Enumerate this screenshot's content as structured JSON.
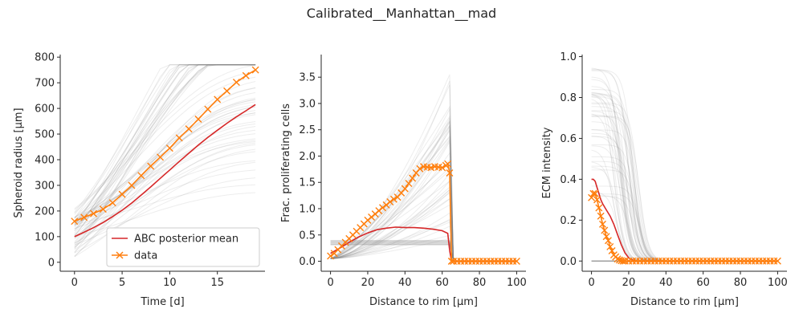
{
  "figure": {
    "suptitle": "Calibrated__Manhattan__mad"
  },
  "colors": {
    "posterior_mean": "#d62728",
    "data": "#ff7f0e",
    "samples": "#7f7f7f",
    "axis": "#262626"
  },
  "chart_data": [
    {
      "type": "line",
      "xlabel": "Time [d]",
      "ylabel": "Spheroid radius [μm]",
      "xlim": [
        -1.5,
        20
      ],
      "ylim": [
        -35,
        810
      ],
      "xticks": [
        0,
        5,
        10,
        15
      ],
      "yticks": [
        0,
        100,
        200,
        300,
        400,
        500,
        600,
        700,
        800
      ],
      "legend": {
        "location": "lower-right",
        "entries": [
          "ABC posterior mean",
          "data"
        ]
      },
      "series": [
        {
          "name": "ABC posterior mean",
          "x": [
            0,
            1,
            2,
            3,
            4,
            5,
            6,
            7,
            8,
            9,
            10,
            11,
            12,
            13,
            14,
            15,
            16,
            17,
            18,
            19
          ],
          "values": [
            100,
            117,
            135,
            155,
            178,
            203,
            231,
            262,
            294,
            327,
            360,
            393,
            425,
            457,
            487,
            515,
            542,
            567,
            591,
            615
          ]
        },
        {
          "name": "data",
          "marker": "x",
          "x": [
            0,
            1,
            2,
            3,
            4,
            5,
            6,
            7,
            8,
            9,
            10,
            11,
            12,
            13,
            14,
            15,
            16,
            17,
            18,
            19
          ],
          "values": [
            160,
            175,
            190,
            207,
            232,
            265,
            300,
            338,
            375,
            410,
            445,
            485,
            520,
            558,
            597,
            635,
            668,
            702,
            728,
            750
          ]
        }
      ],
      "sample_band": {
        "lower": [
          20,
          25,
          30,
          35,
          40,
          50,
          60,
          70,
          80,
          90,
          100,
          110,
          120,
          130,
          140,
          150,
          160,
          170,
          180,
          190
        ],
        "upper": [
          210,
          270,
          330,
          400,
          470,
          540,
          610,
          680,
          745,
          770,
          770,
          770,
          770,
          770,
          770,
          770,
          770,
          770,
          770,
          770
        ],
        "plateau": 770
      }
    },
    {
      "type": "line",
      "xlabel": "Distance to rim [μm]",
      "ylabel": "Frac. proliferating cells",
      "xlim": [
        -5,
        105
      ],
      "ylim": [
        -0.19,
        3.93
      ],
      "xticks": [
        0,
        20,
        40,
        60,
        80,
        100
      ],
      "yticks": [
        0.0,
        0.5,
        1.0,
        1.5,
        2.0,
        2.5,
        3.0,
        3.5
      ],
      "series": [
        {
          "name": "ABC posterior mean",
          "x": [
            0,
            5,
            10,
            15,
            20,
            25,
            30,
            35,
            40,
            45,
            50,
            55,
            60,
            63,
            64,
            65,
            70,
            80,
            90,
            100
          ],
          "values": [
            0.15,
            0.25,
            0.36,
            0.46,
            0.54,
            0.6,
            0.63,
            0.65,
            0.64,
            0.64,
            0.63,
            0.61,
            0.58,
            0.53,
            0.2,
            0.0,
            0.0,
            0.0,
            0.0,
            0.0
          ]
        },
        {
          "name": "data",
          "marker": "x",
          "x": [
            0,
            2,
            4,
            6,
            8,
            10,
            12,
            14,
            16,
            18,
            20,
            22,
            24,
            26,
            28,
            30,
            32,
            34,
            36,
            38,
            40,
            42,
            44,
            46,
            48,
            50,
            52,
            54,
            56,
            58,
            60,
            62,
            63,
            64,
            65,
            66,
            68,
            70,
            72,
            74,
            76,
            78,
            80,
            82,
            84,
            86,
            88,
            90,
            92,
            94,
            96,
            98,
            100
          ],
          "values": [
            0.1,
            0.15,
            0.22,
            0.29,
            0.36,
            0.43,
            0.5,
            0.57,
            0.64,
            0.71,
            0.78,
            0.84,
            0.9,
            0.96,
            1.02,
            1.07,
            1.13,
            1.18,
            1.22,
            1.3,
            1.38,
            1.48,
            1.58,
            1.68,
            1.76,
            1.8,
            1.79,
            1.78,
            1.8,
            1.79,
            1.78,
            1.82,
            1.85,
            1.68,
            0.0,
            0.0,
            0.0,
            0.0,
            0.0,
            0.0,
            0.0,
            0.0,
            0.0,
            0.0,
            0.0,
            0.0,
            0.0,
            0.0,
            0.0,
            0.0,
            0.0,
            0.0,
            0.0
          ]
        }
      ],
      "sample_band": {
        "cutoff": 64,
        "flat_level": 0.35,
        "upper_peak": 3.7
      }
    },
    {
      "type": "line",
      "xlabel": "Distance to rim [μm]",
      "ylabel": "ECM intensity",
      "xlim": [
        -5,
        105
      ],
      "ylim": [
        -0.05,
        1.01
      ],
      "xticks": [
        0,
        20,
        40,
        60,
        80,
        100
      ],
      "yticks": [
        0.0,
        0.2,
        0.4,
        0.6,
        0.8,
        1.0
      ],
      "series": [
        {
          "name": "ABC posterior mean",
          "x": [
            0,
            1,
            2,
            3,
            4,
            5,
            6,
            8,
            10,
            12,
            14,
            16,
            18,
            20,
            22,
            25,
            30,
            40,
            60,
            80,
            100
          ],
          "values": [
            0.4,
            0.4,
            0.39,
            0.36,
            0.33,
            0.3,
            0.28,
            0.25,
            0.22,
            0.18,
            0.13,
            0.08,
            0.04,
            0.015,
            0.005,
            0.0,
            0.0,
            0.0,
            0.0,
            0.0,
            0.0
          ]
        },
        {
          "name": "data",
          "marker": "x",
          "x": [
            0,
            1,
            2,
            3,
            4,
            5,
            6,
            7,
            8,
            9,
            10,
            11,
            12,
            13,
            14,
            15,
            16,
            17,
            18,
            20,
            22,
            24,
            26,
            28,
            30,
            32,
            34,
            36,
            38,
            40,
            42,
            44,
            46,
            48,
            50,
            52,
            54,
            56,
            58,
            60,
            62,
            64,
            66,
            68,
            70,
            72,
            74,
            76,
            78,
            80,
            82,
            84,
            86,
            88,
            90,
            92,
            94,
            96,
            98,
            100
          ],
          "values": [
            0.31,
            0.33,
            0.33,
            0.3,
            0.26,
            0.22,
            0.18,
            0.15,
            0.12,
            0.1,
            0.07,
            0.05,
            0.03,
            0.02,
            0.01,
            0.005,
            0.002,
            0.0,
            0.0,
            0.0,
            0.0,
            0.0,
            0.0,
            0.0,
            0.0,
            0.0,
            0.0,
            0.0,
            0.0,
            0.0,
            0.0,
            0.0,
            0.0,
            0.0,
            0.0,
            0.0,
            0.0,
            0.0,
            0.0,
            0.0,
            0.0,
            0.0,
            0.0,
            0.0,
            0.0,
            0.0,
            0.0,
            0.0,
            0.0,
            0.0,
            0.0,
            0.0,
            0.0,
            0.0,
            0.0,
            0.0,
            0.0,
            0.0,
            0.0,
            0.0
          ]
        }
      ],
      "sample_band": {
        "upper_peak": 0.95,
        "drop_end": 28
      }
    }
  ]
}
